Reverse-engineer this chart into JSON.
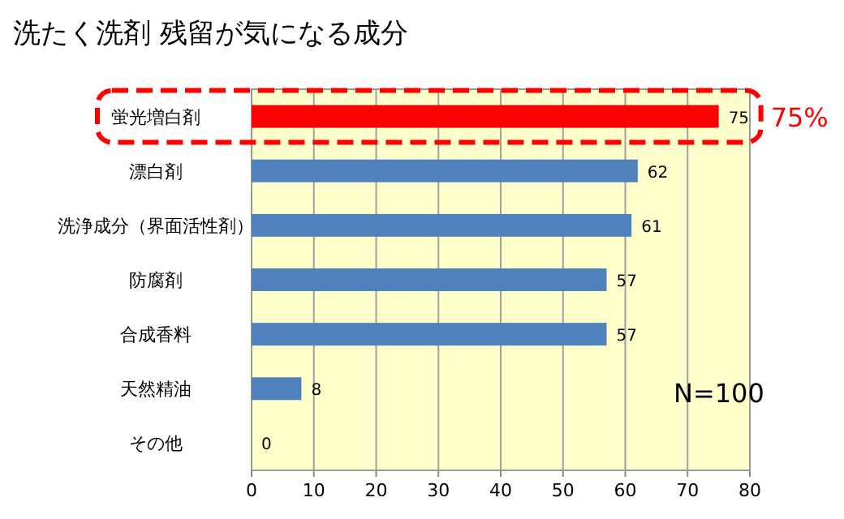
{
  "chart_data": {
    "type": "bar",
    "orientation": "horizontal",
    "title": "洗たく洗剤 残留が気になる成分",
    "categories": [
      "蛍光増白剤",
      "漂白剤",
      "洗浄成分（界面活性剤）",
      "防腐剤",
      "合成香料",
      "天然精油",
      "その他"
    ],
    "values": [
      75,
      62,
      61,
      57,
      57,
      8,
      0
    ],
    "colors": [
      "#ff0000",
      "#4f81bd",
      "#4f81bd",
      "#4f81bd",
      "#4f81bd",
      "#4f81bd",
      "#4f81bd"
    ],
    "xlim": [
      0,
      80
    ],
    "xticks": [
      0,
      10,
      20,
      30,
      40,
      50,
      60,
      70,
      80
    ],
    "grid": "x",
    "data_labels": true,
    "annotations": [
      {
        "text": "75%",
        "x": 75,
        "y": "蛍光増白剤"
      },
      "N=100"
    ]
  }
}
